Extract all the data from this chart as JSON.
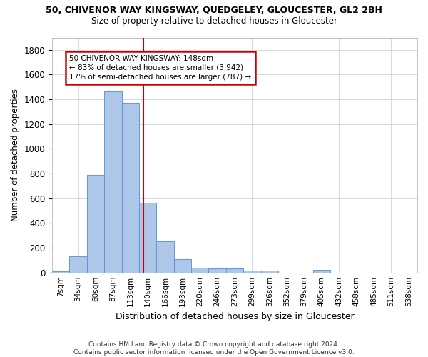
{
  "title": "50, CHIVENOR WAY KINGSWAY, QUEDGELEY, GLOUCESTER, GL2 2BH",
  "subtitle": "Size of property relative to detached houses in Gloucester",
  "xlabel": "Distribution of detached houses by size in Gloucester",
  "ylabel": "Number of detached properties",
  "bar_color": "#aec6e8",
  "bar_edge_color": "#5b9bd5",
  "categories": [
    "7sqm",
    "34sqm",
    "60sqm",
    "87sqm",
    "113sqm",
    "140sqm",
    "166sqm",
    "193sqm",
    "220sqm",
    "246sqm",
    "273sqm",
    "299sqm",
    "326sqm",
    "352sqm",
    "379sqm",
    "405sqm",
    "432sqm",
    "458sqm",
    "485sqm",
    "511sqm",
    "538sqm"
  ],
  "values": [
    10,
    130,
    790,
    1465,
    1370,
    565,
    250,
    110,
    40,
    30,
    30,
    18,
    18,
    0,
    0,
    20,
    0,
    0,
    0,
    0,
    0
  ],
  "ylim": [
    0,
    1900
  ],
  "yticks": [
    0,
    200,
    400,
    600,
    800,
    1000,
    1200,
    1400,
    1600,
    1800
  ],
  "property_line_x": 4.75,
  "property_line_color": "#cc0000",
  "annotation_text": "50 CHIVENOR WAY KINGSWAY: 148sqm\n← 83% of detached houses are smaller (3,942)\n17% of semi-detached houses are larger (787) →",
  "annotation_box_color": "#cc0000",
  "footer": "Contains HM Land Registry data © Crown copyright and database right 2024.\nContains public sector information licensed under the Open Government Licence v3.0.",
  "background_color": "#ffffff",
  "grid_color": "#c8d4e8"
}
